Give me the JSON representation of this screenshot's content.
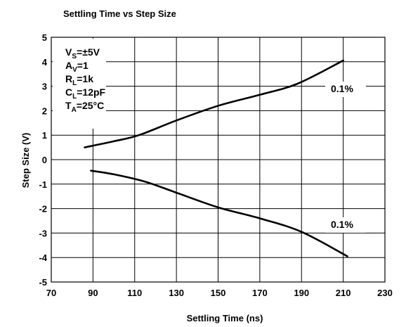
{
  "chart_data": {
    "type": "line",
    "title": "Settling Time vs Step Size",
    "xlabel": "Settling Time (ns)",
    "ylabel": "Step Size (V)",
    "xlim": [
      70,
      230
    ],
    "ylim": [
      -5,
      5
    ],
    "xticks": [
      70,
      90,
      110,
      130,
      150,
      170,
      190,
      210,
      230
    ],
    "xtick_labels": [
      "70",
      "90",
      "110",
      "130",
      "150",
      "170",
      "190",
      "210",
      "230"
    ],
    "yticks": [
      -5,
      -4,
      -3,
      -2,
      -1,
      0,
      1,
      2,
      3,
      4,
      5
    ],
    "ytick_labels": [
      "-5",
      "-4",
      "-3",
      "-2",
      "-1",
      "0",
      "1",
      "2",
      "3",
      "4",
      "5"
    ],
    "grid": true,
    "conditions": [
      {
        "main": "V",
        "sub": "S",
        "rest": "=±5V"
      },
      {
        "main": "A",
        "sub": "V",
        "rest": "=1"
      },
      {
        "main": "R",
        "sub": "L",
        "rest": "=1k"
      },
      {
        "main": "C",
        "sub": "L",
        "rest": "=12pF"
      },
      {
        "main": "T",
        "sub": "A",
        "rest": "=25°C"
      }
    ],
    "series": [
      {
        "label": "0.1%",
        "x": [
          86,
          100,
          112,
          130,
          150,
          170,
          188,
          210
        ],
        "y": [
          0.5,
          0.75,
          1.0,
          1.6,
          2.2,
          2.65,
          3.1,
          4.05
        ]
      },
      {
        "label": "0.1%",
        "x": [
          89,
          100,
          115,
          130,
          150,
          170,
          190,
          212
        ],
        "y": [
          -0.45,
          -0.6,
          -0.9,
          -1.35,
          -1.95,
          -2.4,
          -2.95,
          -3.95
        ]
      }
    ]
  }
}
